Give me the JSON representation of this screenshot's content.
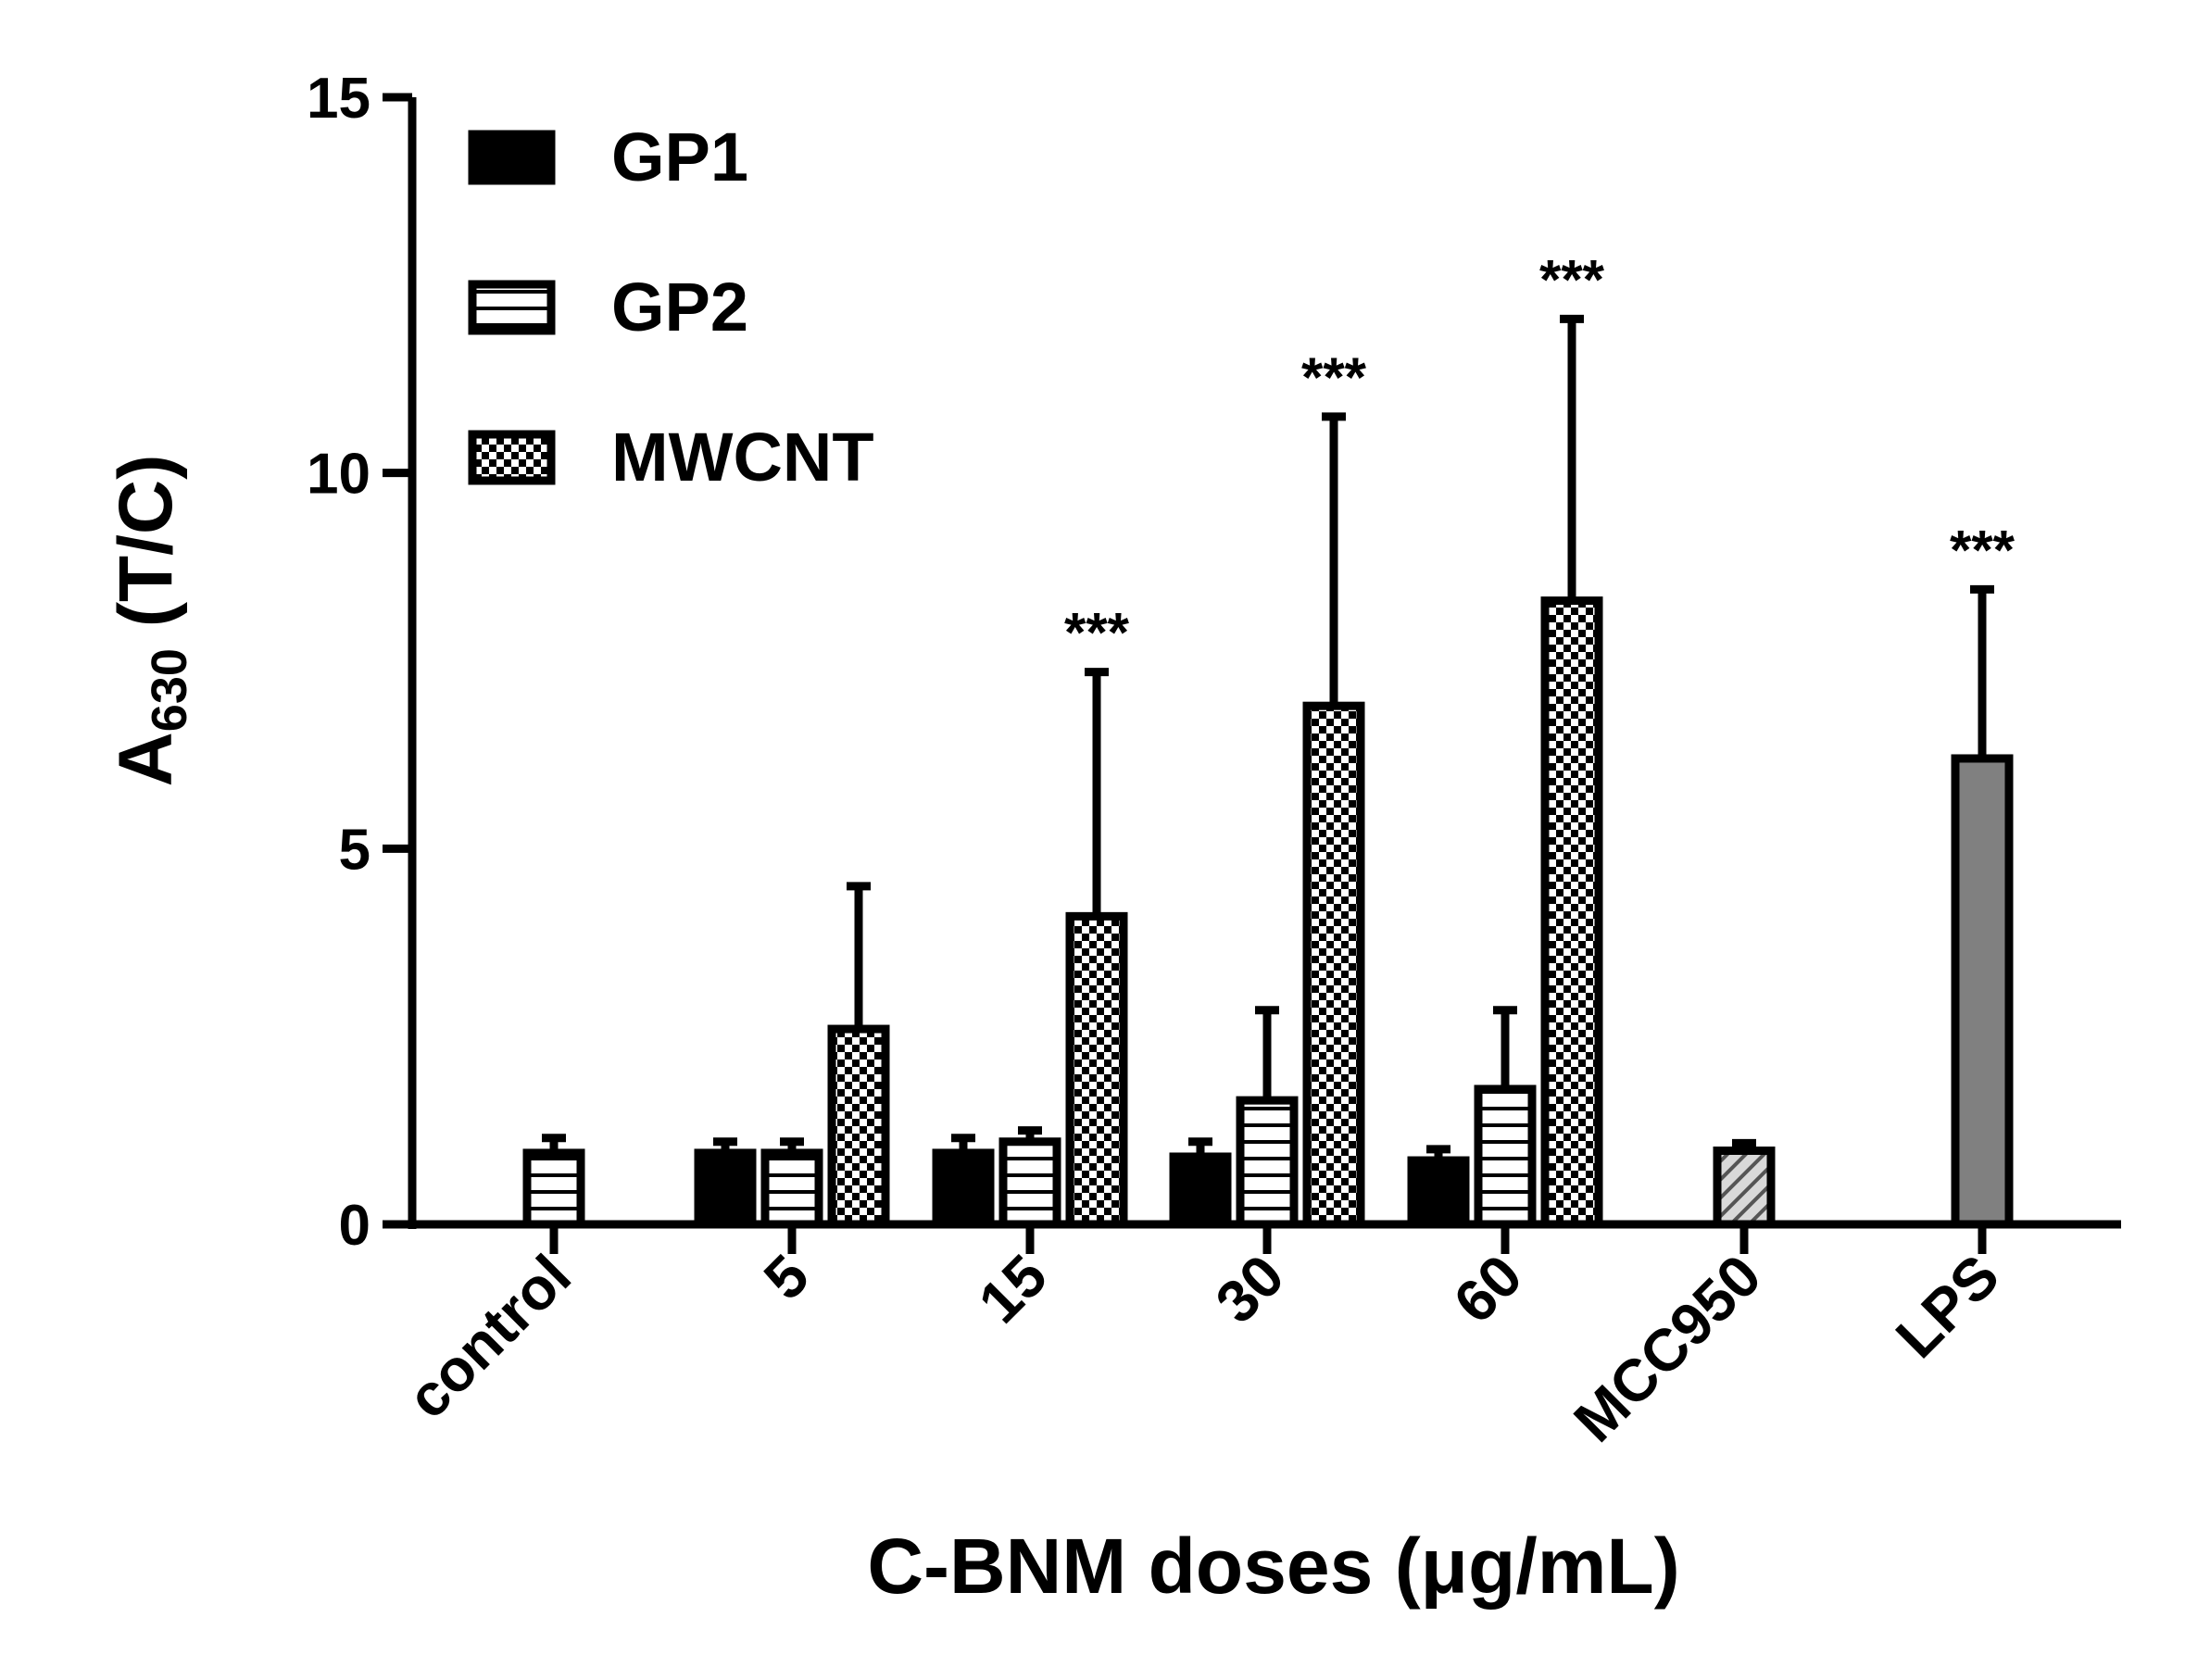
{
  "chart_data": {
    "type": "bar",
    "title": "",
    "ylabel_main": "A",
    "ylabel_sub": "630",
    "ylabel_tail": " (T/C)",
    "xlabel": "C-BNM doses (μg/mL)",
    "ylim": [
      0,
      15
    ],
    "yticks": [
      "0",
      "5",
      "10",
      "15"
    ],
    "legend_position": "top-left",
    "categories": [
      "control",
      "5",
      "15",
      "30",
      "60",
      "MCC950",
      "LPS"
    ],
    "series": [
      {
        "name": "GP1",
        "pattern": "solid",
        "values": [
          null,
          0.95,
          0.95,
          0.9,
          0.85,
          null,
          null
        ],
        "errors": [
          null,
          0.15,
          0.2,
          0.2,
          0.15,
          null,
          null
        ]
      },
      {
        "name": "GP2",
        "pattern": "horizontal-stripes",
        "values": [
          null,
          0.95,
          1.1,
          1.65,
          1.8,
          null,
          null
        ],
        "errors": [
          null,
          0.15,
          0.15,
          1.2,
          1.05,
          null,
          null
        ]
      },
      {
        "name": "MWCNT",
        "pattern": "checkerboard",
        "values": [
          null,
          2.6,
          4.1,
          6.9,
          8.3,
          null,
          null
        ],
        "errors": [
          null,
          1.9,
          3.25,
          3.85,
          3.75,
          null,
          null
        ]
      }
    ],
    "single_bars": [
      {
        "category": "control",
        "pattern": "horizontal-stripes",
        "value": 0.95,
        "error": 0.2
      },
      {
        "category": "MCC950",
        "pattern": "diagonal-hatch",
        "value": 0.98,
        "error": 0.1
      },
      {
        "category": "LPS",
        "pattern": "solid-gray",
        "value": 6.2,
        "error": 2.25
      }
    ],
    "annotations": [
      {
        "category": "15",
        "series": "MWCNT",
        "text": "***"
      },
      {
        "category": "30",
        "series": "MWCNT",
        "text": "***"
      },
      {
        "category": "60",
        "series": "MWCNT",
        "text": "***"
      },
      {
        "category": "LPS",
        "text": "***"
      }
    ],
    "colors": {
      "bar_stroke": "#000000",
      "gp1_fill": "#000000",
      "lps_fill": "#808080",
      "hatch_fill": "#d9d9d9",
      "background": "#ffffff"
    }
  }
}
